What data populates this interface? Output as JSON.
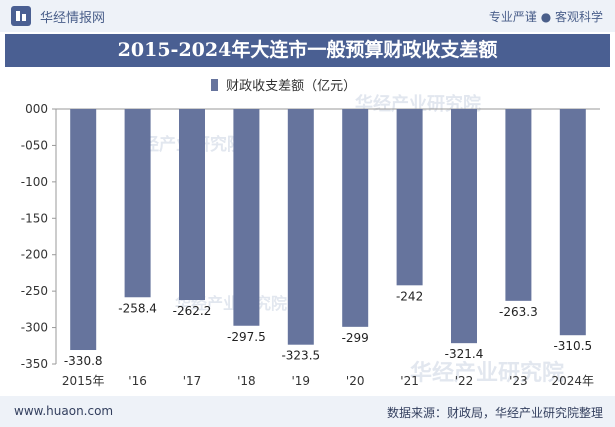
{
  "header": {
    "brand": "华经情报网",
    "tagline": "专业严谨 ● 客观科学"
  },
  "watermark": "华经产业研究院",
  "footer": {
    "url": "www.huaon.com",
    "source": "数据来源：财政局，华经产业研究院整理"
  },
  "colors": {
    "bar": "#66749d",
    "title_bg": "#4a5f92",
    "header_bg": "#eef2f8"
  },
  "chart_data": {
    "type": "bar",
    "title": "2015-2024年大连市一般预算财政收支差额",
    "categories": [
      "2015年",
      "'16",
      "'17",
      "'18",
      "'19",
      "'20",
      "'21",
      "'22",
      "'23",
      "2024年"
    ],
    "series": [
      {
        "name": "财政收支差额（亿元）",
        "values": [
          -330.8,
          -258.4,
          -262.2,
          -297.5,
          -323.5,
          -299,
          -242,
          -321.4,
          -263.3,
          -310.5
        ],
        "value_labels": [
          "-330.8",
          "-258.4",
          "-262.2",
          "-297.5",
          "-323.5",
          "-299",
          "-242",
          "-321.4",
          "-263.3",
          "-310.5"
        ]
      }
    ],
    "ylim": [
      -350,
      0
    ],
    "yticks": [
      0,
      -50,
      -100,
      -150,
      -200,
      -250,
      -300,
      -350
    ],
    "ytick_labels": [
      "000",
      "-050",
      "-100",
      "-150",
      "-200",
      "-250",
      "-300",
      "-350"
    ],
    "grid": false,
    "legend": "top"
  }
}
